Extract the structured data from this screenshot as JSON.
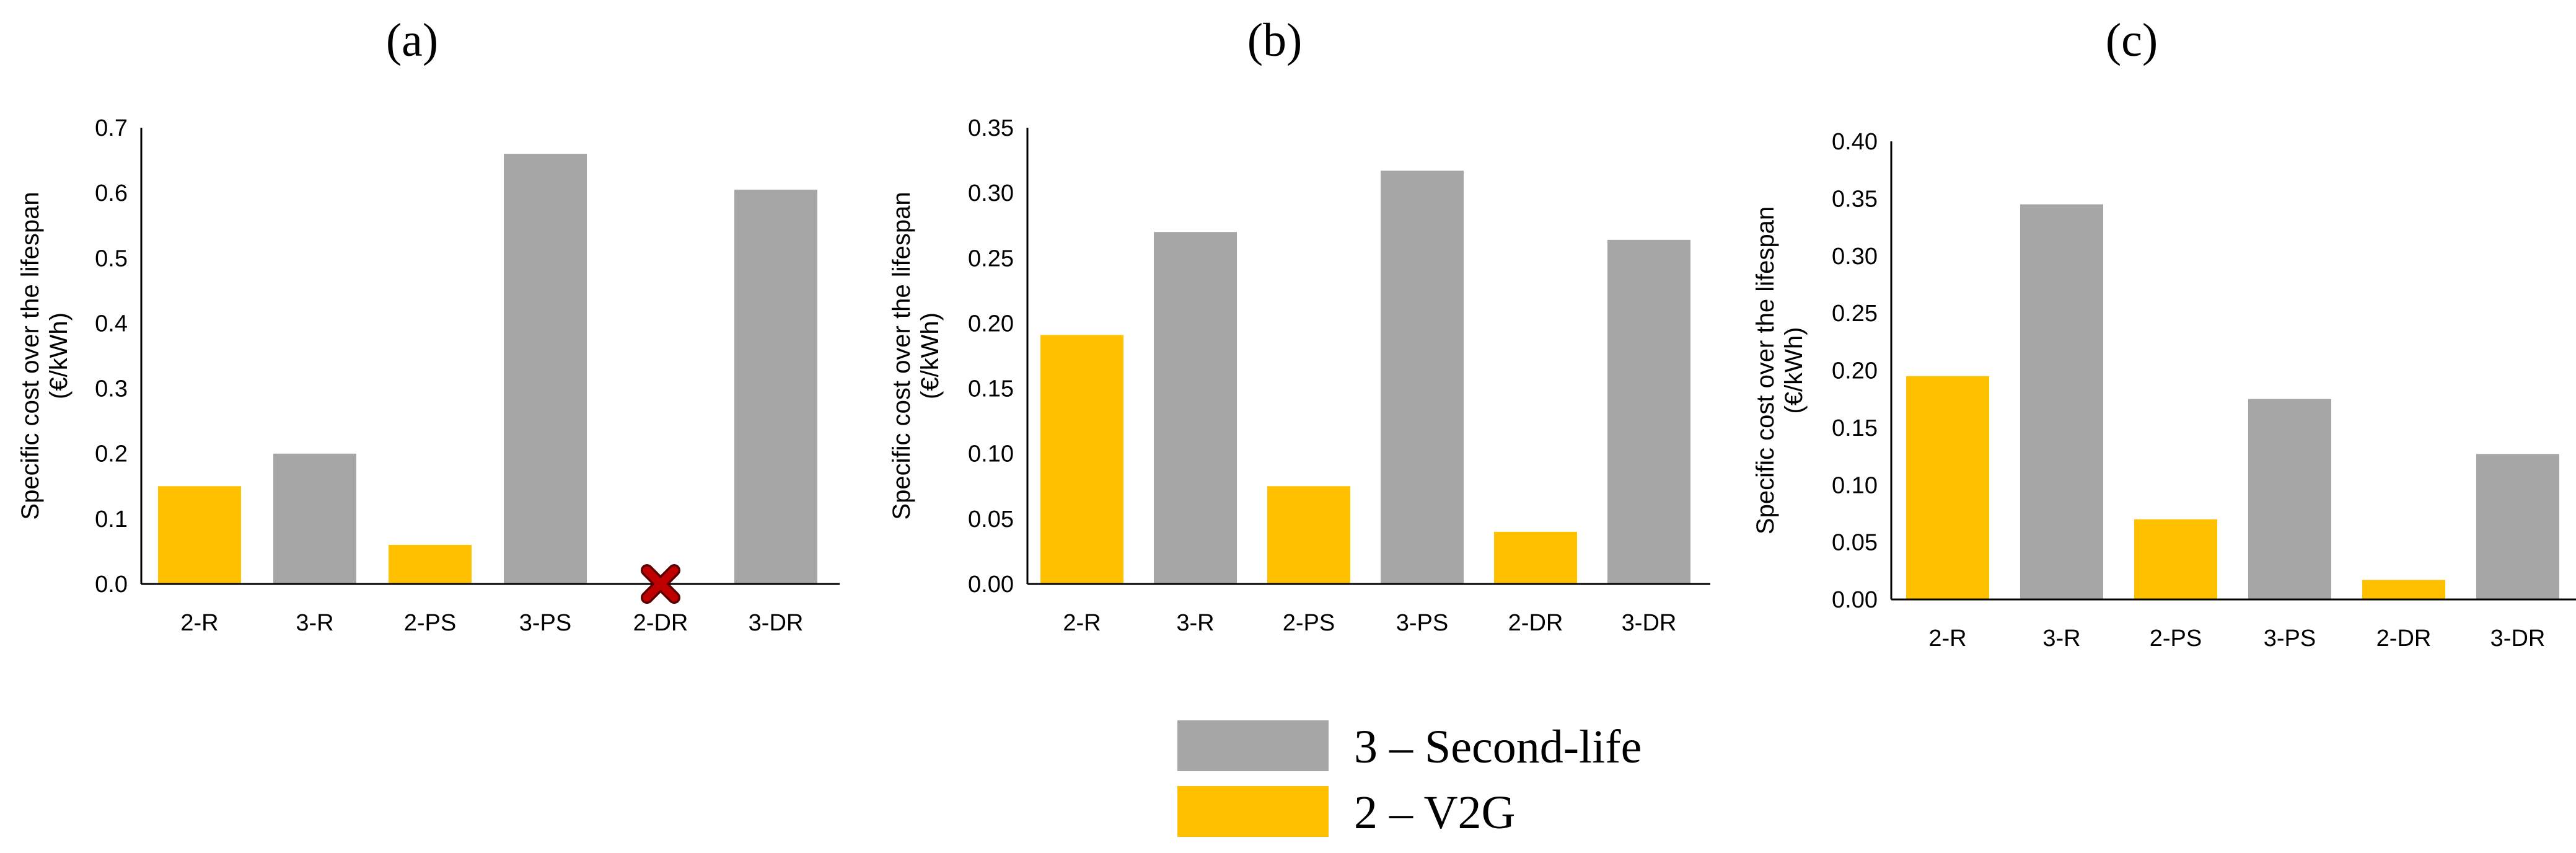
{
  "chart_data": [
    {
      "type": "bar",
      "title": "(a)",
      "ylabel": [
        "Specific cost over the lifespan",
        "(€/kWh)"
      ],
      "xlabel": "",
      "categories": [
        "2-R",
        "3-R",
        "2-PS",
        "3-PS",
        "2-DR",
        "3-DR"
      ],
      "values": [
        0.15,
        0.2,
        0.06,
        0.66,
        null,
        0.605
      ],
      "groups": [
        "2",
        "3",
        "2",
        "3",
        "2",
        "3"
      ],
      "ylim": [
        0,
        0.7
      ],
      "yticks": [
        "0.0",
        "0.1",
        "0.2",
        "0.3",
        "0.4",
        "0.5",
        "0.6",
        "0.7"
      ],
      "annotations": [
        {
          "category": "2-DR",
          "marker": "red-x",
          "meaning": "not available"
        }
      ]
    },
    {
      "type": "bar",
      "title": "(b)",
      "ylabel": [
        "Specific cost over the lifespan",
        "(€/kWh)"
      ],
      "xlabel": "",
      "categories": [
        "2-R",
        "3-R",
        "2-PS",
        "3-PS",
        "2-DR",
        "3-DR"
      ],
      "values": [
        0.191,
        0.27,
        0.075,
        0.317,
        0.04,
        0.264
      ],
      "groups": [
        "2",
        "3",
        "2",
        "3",
        "2",
        "3"
      ],
      "ylim": [
        0,
        0.35
      ],
      "yticks": [
        "0.00",
        "0.05",
        "0.10",
        "0.15",
        "0.20",
        "0.25",
        "0.30",
        "0.35"
      ]
    },
    {
      "type": "bar",
      "title": "(c)",
      "ylabel": [
        "Specific cost over the lifespan",
        "(€/kWh)"
      ],
      "xlabel": "",
      "categories": [
        "2-R",
        "3-R",
        "2-PS",
        "3-PS",
        "2-DR",
        "3-DR"
      ],
      "values": [
        0.195,
        0.345,
        0.07,
        0.175,
        0.017,
        0.127
      ],
      "groups": [
        "2",
        "3",
        "2",
        "3",
        "2",
        "3"
      ],
      "ylim": [
        0,
        0.4
      ],
      "yticks": [
        "0.00",
        "0.05",
        "0.10",
        "0.15",
        "0.20",
        "0.25",
        "0.30",
        "0.35",
        "0.40"
      ]
    }
  ],
  "legend": [
    {
      "key": "3",
      "label": "3 – Second-life",
      "color": "#a6a6a6"
    },
    {
      "key": "2",
      "label": "2 – V2G",
      "color": "#ffc000"
    }
  ],
  "colors": {
    "second_life": "#a6a6a6",
    "v2g": "#ffc000",
    "cross": "#c00000",
    "axis": "#000000"
  }
}
